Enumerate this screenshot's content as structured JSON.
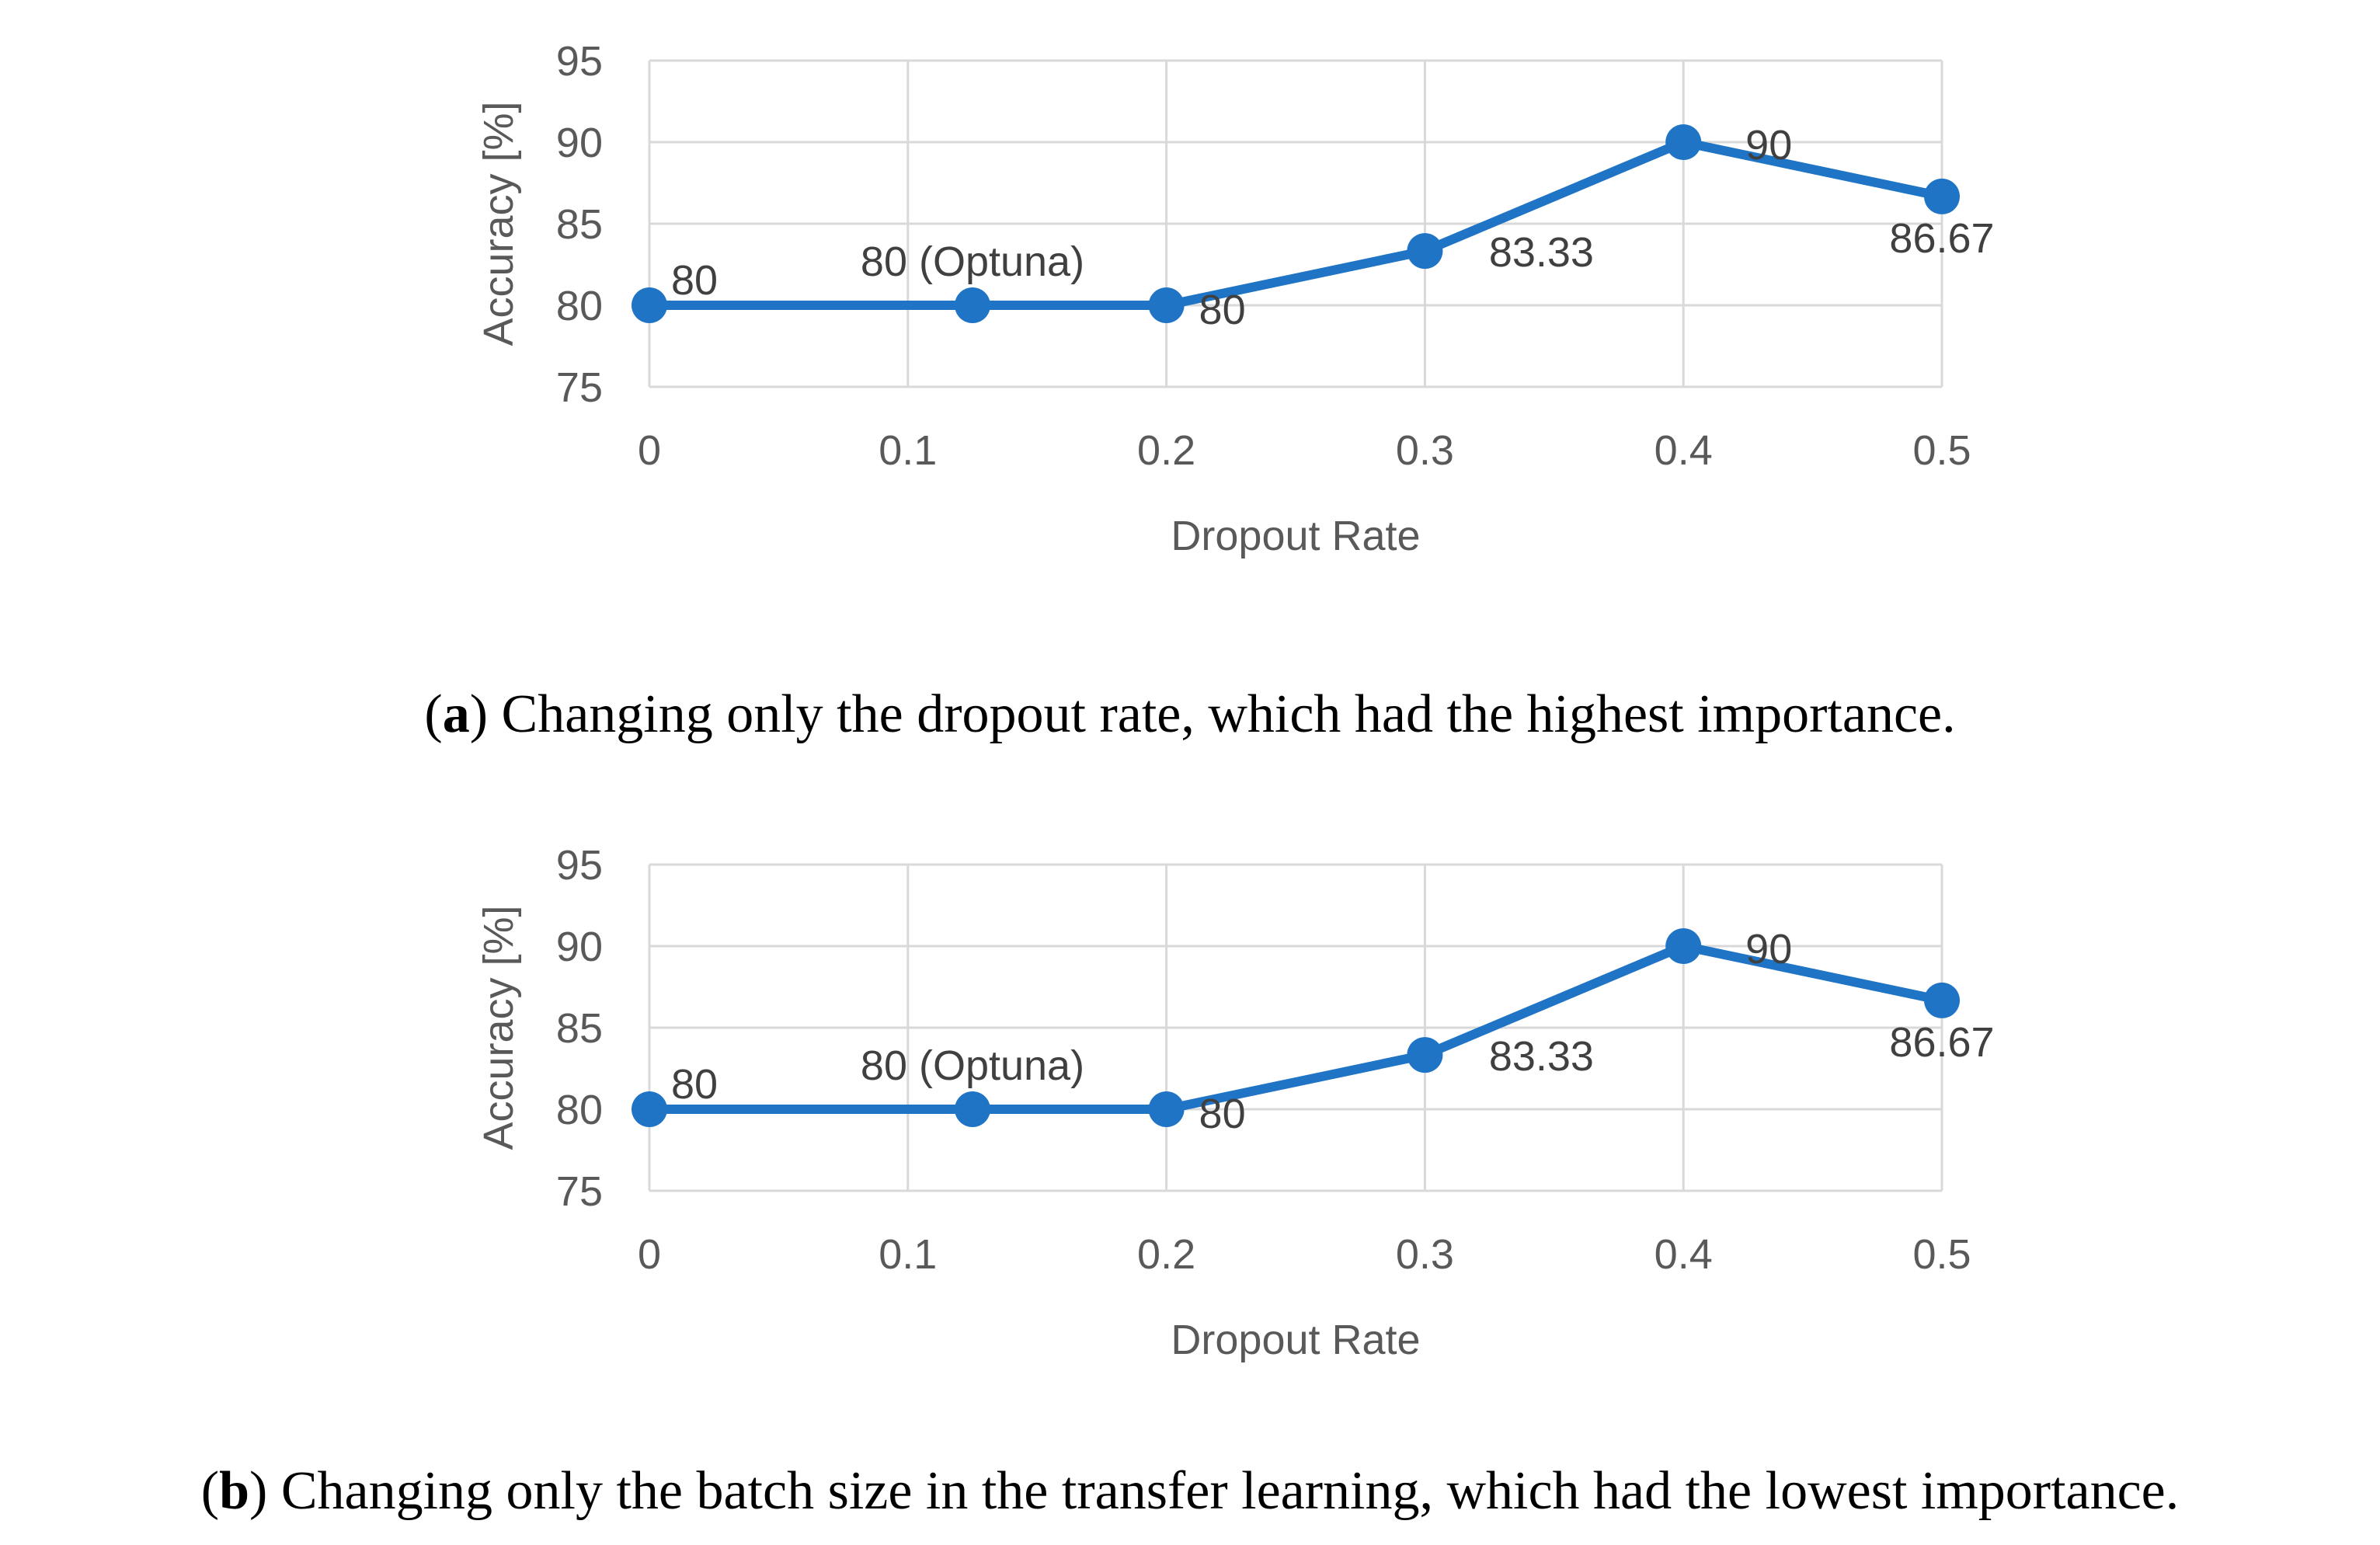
{
  "chart_data": [
    {
      "id": "a",
      "type": "line",
      "title": "",
      "xlabel": "Dropout Rate",
      "ylabel": "Accuracy [%]",
      "ylim": [
        75,
        95
      ],
      "yticks": [
        75,
        80,
        85,
        90,
        95
      ],
      "xtick_labels": [
        "0",
        "0.1",
        "0.2",
        "0.3",
        "0.4",
        "0.5"
      ],
      "grid": true,
      "color": "#1f74c6",
      "series": [
        {
          "name": "Accuracy",
          "x": [
            0,
            0.125,
            0.2,
            0.3,
            0.4,
            0.5
          ],
          "y": [
            80,
            80,
            80,
            83.33,
            90,
            86.67
          ],
          "labels": [
            "80",
            "80 (Optuna)",
            "80",
            "83.33",
            "90",
            "86.67"
          ]
        }
      ],
      "caption": {
        "letter": "a",
        "text": "Changing only the dropout rate, which had the highest importance."
      }
    },
    {
      "id": "b",
      "type": "line",
      "title": "",
      "xlabel": "Dropout Rate",
      "ylabel": "Accuracy [%]",
      "ylim": [
        75,
        95
      ],
      "yticks": [
        75,
        80,
        85,
        90,
        95
      ],
      "xtick_labels": [
        "0",
        "0.1",
        "0.2",
        "0.3",
        "0.4",
        "0.5"
      ],
      "grid": true,
      "color": "#1f74c6",
      "series": [
        {
          "name": "Accuracy",
          "x": [
            0,
            0.125,
            0.2,
            0.3,
            0.4,
            0.5
          ],
          "y": [
            80,
            80,
            80,
            83.33,
            90,
            86.67
          ],
          "labels": [
            "80",
            "80 (Optuna)",
            "80",
            "83.33",
            "90",
            "86.67"
          ]
        }
      ],
      "caption": {
        "letter": "b",
        "text": "Changing only the batch size in the transfer learning, which had the lowest importance."
      }
    }
  ]
}
